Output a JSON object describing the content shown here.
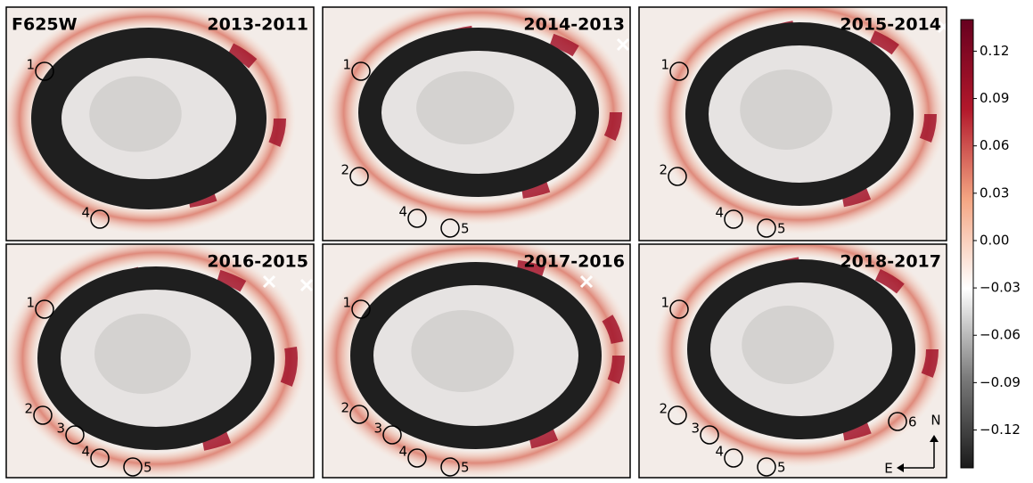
{
  "chart_data": {
    "type": "image-grid",
    "filter_label": "F625W",
    "panels": [
      {
        "title": "2013-2011",
        "markers": [
          "1",
          "4"
        ]
      },
      {
        "title": "2014-2013",
        "markers": [
          "1",
          "2",
          "4",
          "5"
        ]
      },
      {
        "title": "2015-2014",
        "markers": [
          "1",
          "2",
          "4",
          "5"
        ]
      },
      {
        "title": "2016-2015",
        "markers": [
          "1",
          "2",
          "3",
          "4",
          "5"
        ]
      },
      {
        "title": "2017-2016",
        "markers": [
          "1",
          "2",
          "3",
          "4",
          "5"
        ]
      },
      {
        "title": "2018-2017",
        "markers": [
          "1",
          "2",
          "3",
          "4",
          "5",
          "6"
        ]
      }
    ],
    "colorbar": {
      "ylim": [
        -0.144,
        0.14
      ],
      "yticks": [
        {
          "value": -0.12,
          "label": "−0.12"
        },
        {
          "value": -0.09,
          "label": "−0.09"
        },
        {
          "value": -0.06,
          "label": "−0.06"
        },
        {
          "value": -0.03,
          "label": "−0.03"
        },
        {
          "value": 0,
          "label": "0.00"
        },
        0.03,
        0.06,
        0.09,
        0.12
      ],
      "colors": [
        "#1a1a1a",
        "#7a7a7a",
        "#ffffff",
        "#f4a582",
        "#b2182b",
        "#67001f"
      ]
    },
    "compass": {
      "north": "N",
      "east": "E"
    }
  }
}
